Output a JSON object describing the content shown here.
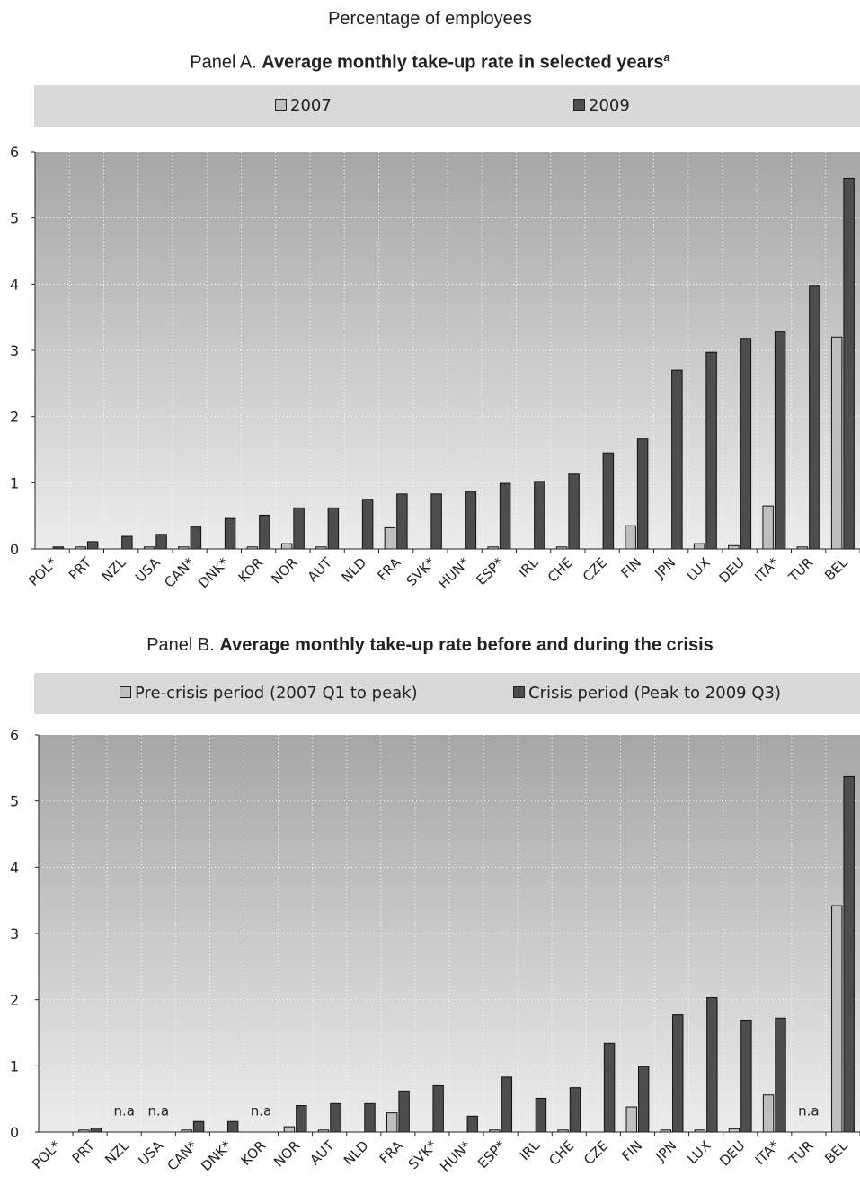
{
  "header": {
    "title": "Percentage of employees"
  },
  "chart_data": [
    {
      "type": "bar",
      "title_prefix": "Panel A. ",
      "title_bold": "Average monthly take-up rate in selected years",
      "title_superscript": "a",
      "ylim": [
        0,
        6
      ],
      "yticks": [
        "0",
        "1",
        "2",
        "3",
        "4",
        "5",
        "6"
      ],
      "grid": true,
      "legend_position": "top",
      "categories": [
        "POL*",
        "PRT",
        "NZL",
        "USA",
        "CAN*",
        "DNK*",
        "KOR",
        "NOR",
        "AUT",
        "NLD",
        "FRA",
        "SVK*",
        "HUN*",
        "ESP*",
        "IRL",
        "CHE",
        "CZE",
        "FIN",
        "JPN",
        "LUX",
        "DEU",
        "ITA*",
        "TUR",
        "BEL"
      ],
      "series": [
        {
          "name": "2007",
          "color": "#bfbfbf",
          "values": [
            0,
            0.03,
            0,
            0.03,
            0.03,
            0,
            0.03,
            0.08,
            0.03,
            0,
            0.32,
            0,
            0,
            0.03,
            0,
            0.03,
            0,
            0.35,
            0,
            0.08,
            0.05,
            0.65,
            0.03,
            3.2
          ]
        },
        {
          "name": "2009",
          "color": "#4d4d4d",
          "values": [
            0.03,
            0.11,
            0.19,
            0.22,
            0.33,
            0.46,
            0.51,
            0.62,
            0.62,
            0.75,
            0.83,
            0.83,
            0.86,
            0.99,
            1.02,
            1.13,
            1.45,
            1.66,
            2.7,
            2.97,
            3.18,
            3.29,
            3.98,
            5.6
          ]
        }
      ],
      "annotations": []
    },
    {
      "type": "bar",
      "title_prefix": "Panel B. ",
      "title_bold": "Average monthly take-up rate before and during the crisis",
      "title_superscript": "",
      "ylim": [
        0,
        6
      ],
      "yticks": [
        "0",
        "1",
        "2",
        "3",
        "4",
        "5",
        "6"
      ],
      "grid": true,
      "legend_position": "top",
      "categories": [
        "POL*",
        "PRT",
        "NZL",
        "USA",
        "CAN*",
        "DNK*",
        "KOR",
        "NOR",
        "AUT",
        "NLD",
        "FRA",
        "SVK*",
        "HUN*",
        "ESP*",
        "IRL",
        "CHE",
        "CZE",
        "FIN",
        "JPN",
        "LUX",
        "DEU",
        "ITA*",
        "TUR",
        "BEL"
      ],
      "series": [
        {
          "name": "Pre-crisis period (2007 Q1 to peak)",
          "color": "#bfbfbf",
          "values": [
            0,
            0.03,
            0,
            0,
            0.03,
            0,
            0,
            0.08,
            0.03,
            0,
            0.29,
            0,
            0,
            0.03,
            0,
            0.03,
            0,
            0.38,
            0.03,
            0.03,
            0.05,
            0.56,
            0,
            3.42
          ]
        },
        {
          "name": "Crisis period (Peak to  2009 Q3)",
          "color": "#4d4d4d",
          "values": [
            0,
            0.06,
            0,
            0,
            0.16,
            0.16,
            0,
            0.4,
            0.43,
            0.43,
            0.62,
            0.7,
            0.24,
            0.83,
            0.51,
            0.67,
            1.34,
            0.99,
            1.77,
            2.03,
            1.69,
            1.72,
            0,
            5.37
          ]
        }
      ],
      "annotations": [
        {
          "category": "NZL",
          "text": "n.a"
        },
        {
          "category": "USA",
          "text": "n.a"
        },
        {
          "category": "KOR",
          "text": "n.a"
        },
        {
          "category": "TUR",
          "text": "n.a"
        }
      ]
    }
  ]
}
